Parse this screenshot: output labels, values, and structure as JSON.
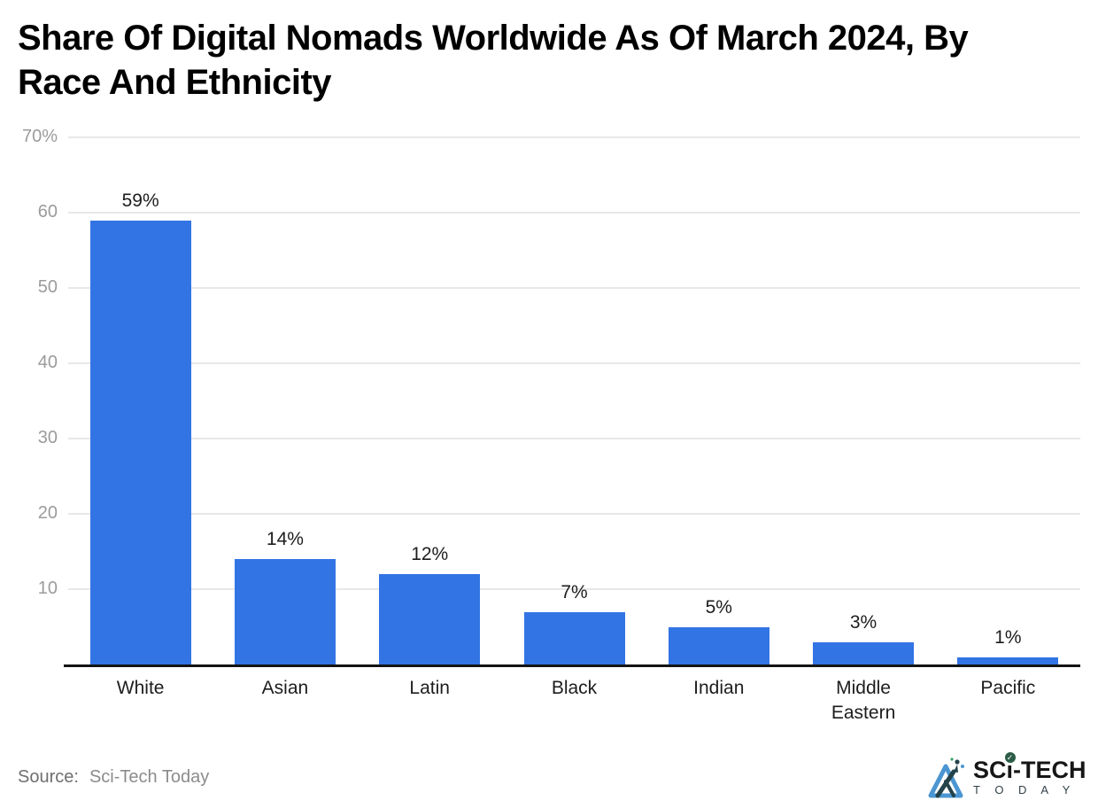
{
  "header": {
    "title_line1": "Share Of Digital Nomads Worldwide As Of March 2024, By",
    "title_line2": "Race And Ethnicity"
  },
  "chart_data": {
    "type": "bar",
    "title": "Share Of Digital Nomads Worldwide As Of March 2024, By Race And Ethnicity",
    "categories": [
      "White",
      "Asian",
      "Latin",
      "Black",
      "Indian",
      "Middle Eastern",
      "Pacific"
    ],
    "values": [
      59,
      14,
      12,
      7,
      5,
      3,
      1
    ],
    "value_labels": [
      "59%",
      "14%",
      "12%",
      "7%",
      "5%",
      "3%",
      "1%"
    ],
    "y_ticks": [
      70,
      60,
      50,
      40,
      30,
      20,
      10
    ],
    "y_tick_labels": [
      "70%",
      "60",
      "50",
      "40",
      "30",
      "20",
      "10"
    ],
    "ylim": [
      0,
      70
    ],
    "xlabel": "",
    "ylabel": "",
    "grid": true,
    "legend_position": "none",
    "bar_color": "#3274e4",
    "grid_color": "#e8e8e8",
    "axis_color": "#141414",
    "tick_text_color": "#9b9b9b",
    "label_text_color": "#1d1d1d"
  },
  "source": {
    "prefix": "Source:",
    "name": "Sci-Tech Today"
  },
  "logo": {
    "part1": "SC",
    "i_stem": "ı",
    "part2": "-TECH",
    "line2": "T O D A Y"
  },
  "icons": {
    "check_icon": "✓"
  }
}
